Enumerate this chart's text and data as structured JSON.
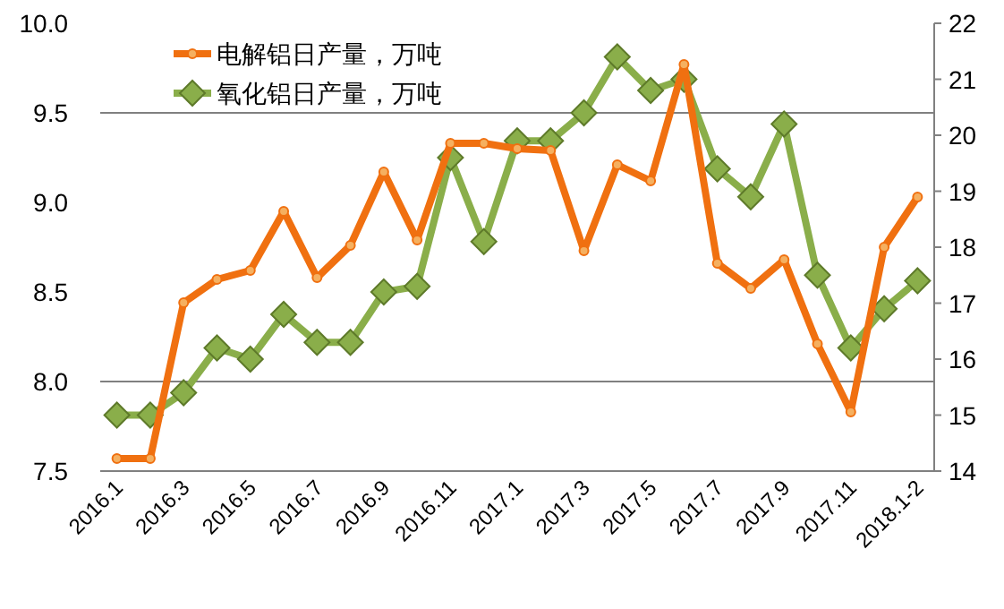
{
  "chart_data": {
    "type": "line",
    "categories": [
      "2016.1",
      null,
      "2016.3",
      null,
      "2016.5",
      null,
      "2016.7",
      null,
      "2016.9",
      null,
      "2016.11",
      null,
      "2017.1",
      null,
      "2017.3",
      null,
      "2017.5",
      null,
      "2017.7",
      null,
      "2017.9",
      null,
      "2017.11",
      null,
      "2018.1-2"
    ],
    "series": [
      {
        "name": "电解铝日产量，万吨",
        "color": "#f07010",
        "marker": "circle",
        "values": [
          7.57,
          7.57,
          8.44,
          8.57,
          8.62,
          8.95,
          8.58,
          8.76,
          9.17,
          8.79,
          9.33,
          9.33,
          9.3,
          9.29,
          8.73,
          9.21,
          9.12,
          9.77,
          8.66,
          8.52,
          8.68,
          8.21,
          7.83,
          8.75,
          9.03
        ]
      },
      {
        "name": "氧化铝日产量，万吨",
        "color": "#8aae4a",
        "marker": "diamond",
        "axis": "y2",
        "values": [
          15.0,
          15.0,
          15.4,
          16.2,
          16.0,
          16.8,
          16.3,
          16.3,
          17.2,
          17.3,
          19.6,
          18.1,
          19.9,
          19.9,
          20.4,
          21.4,
          20.8,
          21.0,
          19.4,
          18.9,
          20.2,
          17.5,
          16.2,
          16.9,
          17.4
        ]
      }
    ],
    "ylim": [
      7.5,
      10.0
    ],
    "yticks": [
      {
        "value": 7.5,
        "label": "7.5"
      },
      {
        "value": 8.0,
        "label": "8.0"
      },
      {
        "value": 8.5,
        "label": "8.5"
      },
      {
        "value": 9.0,
        "label": "9.0"
      },
      {
        "value": 9.5,
        "label": "9.5"
      },
      {
        "value": 10.0,
        "label": "10.0"
      }
    ],
    "y2lim": [
      14,
      22
    ],
    "y2ticks": [
      14,
      15,
      16,
      17,
      18,
      19,
      20,
      21,
      22
    ],
    "ref_lines": [
      {
        "axis": "y",
        "value": 9.5,
        "color": "#808080"
      },
      {
        "axis": "y",
        "value": 8.0,
        "color": "#808080"
      }
    ],
    "legend": "top left",
    "grid": false
  }
}
